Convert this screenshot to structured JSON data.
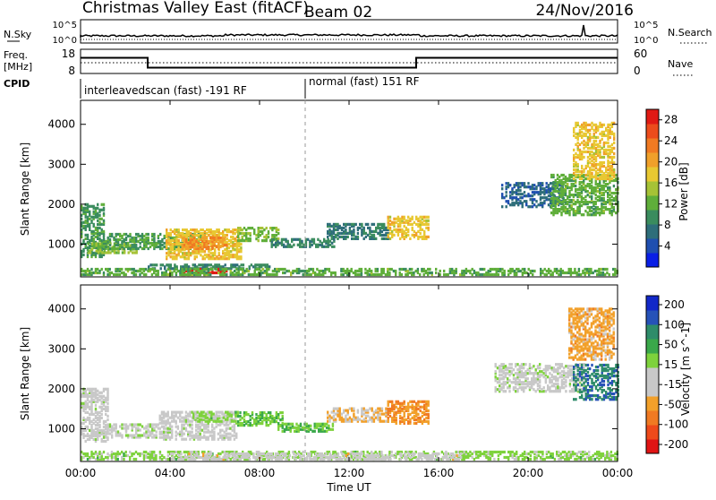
{
  "header": {
    "station": "Christmas Valley East (fitACF)",
    "beam": "Beam 02",
    "date": "24/Nov/2016"
  },
  "noise_panel": {
    "left_label": "N.Sky",
    "right_label": "N.Search",
    "left_ticks": [
      "10^5",
      "10^0"
    ],
    "right_ticks": [
      "10^5",
      "10^0"
    ]
  },
  "freq_panel": {
    "left_label_1": "Freq.",
    "left_label_2": "[MHz]",
    "right_label": "Nave",
    "left_ticks": [
      "18",
      "8"
    ],
    "right_ticks": [
      "60",
      "0"
    ],
    "freq_segments": [
      {
        "from_h": 0,
        "to_h": 3,
        "mhz": 14.5
      },
      {
        "from_h": 3,
        "to_h": 15,
        "mhz": 10.4
      },
      {
        "from_h": 15,
        "to_h": 24,
        "mhz": 14.5
      }
    ]
  },
  "cpid": {
    "label": "CPID",
    "modes": [
      {
        "text": "interleavedscan (fast) -191 RF",
        "from_h": 0
      },
      {
        "text": "normal (fast) 151 RF",
        "from_h": 10
      }
    ]
  },
  "chart_data": [
    {
      "type": "heatmap",
      "title": "Power",
      "ylabel": "Slant Range [km]",
      "xlabel": "Time UT",
      "x_ticks": [
        "00:00",
        "04:00",
        "08:00",
        "12:00",
        "16:00",
        "20:00",
        "00:00"
      ],
      "x_range_hours": [
        0,
        24
      ],
      "y_ticks": [
        1000,
        2000,
        3000,
        4000
      ],
      "ylim": [
        180,
        4600
      ],
      "colorbar": {
        "label": "Power [dB]",
        "ticks": [
          4,
          8,
          12,
          16,
          20,
          24,
          28
        ],
        "range": [
          0,
          30
        ],
        "colors": [
          "#0a1fe6",
          "#1f4fb0",
          "#2e6e7a",
          "#3a8c5e",
          "#5fae3a",
          "#a6c236",
          "#e8c832",
          "#f0a02a",
          "#f07a22",
          "#ec4c1c",
          "#e01a14"
        ]
      },
      "regions": [
        {
          "t0": 0.0,
          "t1": 1.0,
          "r0": 650,
          "r1": 2000,
          "level": 10
        },
        {
          "t0": 0.3,
          "t1": 2.5,
          "r0": 750,
          "r1": 1000,
          "level": 14
        },
        {
          "t0": 1.0,
          "t1": 5.5,
          "r0": 850,
          "r1": 1250,
          "level": 11
        },
        {
          "t0": 3.8,
          "t1": 7.2,
          "r0": 600,
          "r1": 1350,
          "level": 18
        },
        {
          "t0": 4.5,
          "t1": 6.5,
          "r0": 850,
          "r1": 1150,
          "level": 22
        },
        {
          "t0": 7.0,
          "t1": 8.8,
          "r0": 1050,
          "r1": 1400,
          "level": 13
        },
        {
          "t0": 8.5,
          "t1": 11.3,
          "r0": 900,
          "r1": 1100,
          "level": 9
        },
        {
          "t0": 11.0,
          "t1": 13.7,
          "r0": 1100,
          "r1": 1500,
          "level": 8
        },
        {
          "t0": 13.7,
          "t1": 15.5,
          "r0": 1100,
          "r1": 1650,
          "level": 18
        },
        {
          "t0": 3.0,
          "t1": 8.5,
          "r0": 350,
          "r1": 480,
          "level": 9
        },
        {
          "t0": 4.5,
          "t1": 6.5,
          "r0": 200,
          "r1": 340,
          "level": 29
        },
        {
          "t0": 0.0,
          "t1": 24.0,
          "r0": 200,
          "r1": 360,
          "level": 12
        },
        {
          "t0": 18.8,
          "t1": 21.5,
          "r0": 1900,
          "r1": 2500,
          "level": 6
        },
        {
          "t0": 21.0,
          "t1": 24.0,
          "r0": 1700,
          "r1": 2700,
          "level": 12
        },
        {
          "t0": 22.0,
          "t1": 23.8,
          "r0": 2600,
          "r1": 4000,
          "level": 18
        }
      ]
    },
    {
      "type": "heatmap",
      "title": "Velocity",
      "ylabel": "Slant Range [km]",
      "xlabel": "Time UT",
      "x_ticks": [
        "00:00",
        "04:00",
        "08:00",
        "12:00",
        "16:00",
        "20:00",
        "00:00"
      ],
      "x_range_hours": [
        0,
        24
      ],
      "y_ticks": [
        1000,
        2000,
        3000,
        4000
      ],
      "ylim": [
        180,
        4600
      ],
      "colorbar": {
        "label": "Velocity [m s^-1]",
        "ticks": [
          200,
          100,
          50,
          15,
          -15,
          -50,
          -100,
          -200
        ],
        "range": [
          -250,
          250
        ],
        "colors": [
          "#e01414",
          "#ee4a1a",
          "#f07a22",
          "#f2a02a",
          "#c8c8c8",
          "#c8c8c8",
          "#7ed23c",
          "#3aa84a",
          "#2e8c6a",
          "#2652b8",
          "#1228c8"
        ]
      },
      "regions": [
        {
          "t0": 0.0,
          "t1": 1.2,
          "r0": 650,
          "r1": 2000,
          "level": 0
        },
        {
          "t0": 1.0,
          "t1": 3.5,
          "r0": 750,
          "r1": 1100,
          "level": 5
        },
        {
          "t0": 3.5,
          "t1": 7.0,
          "r0": 700,
          "r1": 1400,
          "level": 0
        },
        {
          "t0": 5.0,
          "t1": 7.0,
          "r0": 1150,
          "r1": 1400,
          "level": 40
        },
        {
          "t0": 7.0,
          "t1": 9.0,
          "r0": 1050,
          "r1": 1400,
          "level": 60
        },
        {
          "t0": 8.8,
          "t1": 11.3,
          "r0": 900,
          "r1": 1100,
          "level": 70
        },
        {
          "t0": 11.0,
          "t1": 13.7,
          "r0": 1150,
          "r1": 1500,
          "level": -70
        },
        {
          "t0": 13.7,
          "t1": 15.5,
          "r0": 1100,
          "r1": 1650,
          "level": -110
        },
        {
          "t0": 0.0,
          "t1": 24.0,
          "r0": 200,
          "r1": 420,
          "level": 40
        },
        {
          "t0": 4.0,
          "t1": 17.0,
          "r0": 200,
          "r1": 380,
          "level": -40
        },
        {
          "t0": 18.5,
          "t1": 22.5,
          "r0": 1900,
          "r1": 2600,
          "level": 0
        },
        {
          "t0": 22.0,
          "t1": 24.0,
          "r0": 1700,
          "r1": 2600,
          "level": 150
        },
        {
          "t0": 21.8,
          "t1": 23.8,
          "r0": 2700,
          "r1": 4000,
          "level": -90
        }
      ]
    }
  ]
}
